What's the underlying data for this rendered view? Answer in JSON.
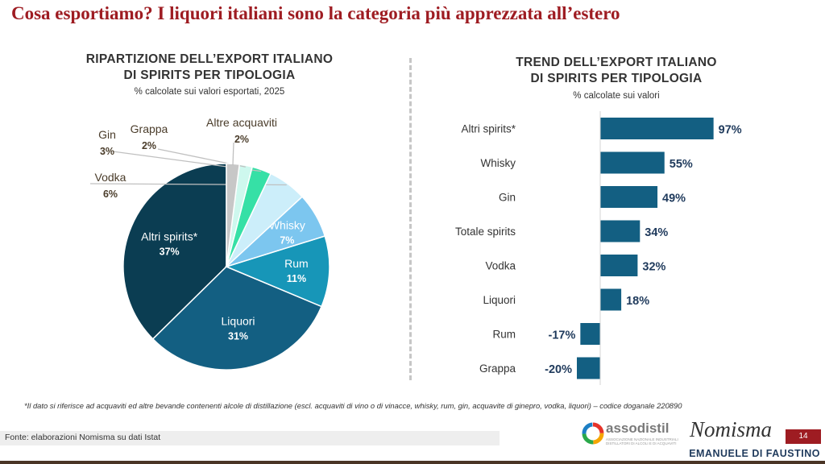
{
  "slide": {
    "title": "Cosa esportiamo? I liquori italiani sono la categoria più apprezzata all’estero",
    "footnote": "*Il dato si riferisce ad acquaviti ed altre bevande contenenti alcole di distillazione (escl. acquaviti di vino o di vinacce, whisky, rum, gin, acquavite di ginepro, vodka, liquori) – codice doganale 220890",
    "source": "Fonte: elaborazioni Nomisma su dati Istat",
    "page_number": "14",
    "author": "EMANUELE DI FAUSTINO",
    "logo_assodistil": "assodistil",
    "logo_assodistil_tagline": "ASSOCIAZIONE NAZIONALE INDUSTRIALI DISTILLATORI DI ALCOLI E DI ACQUAVITI",
    "logo_nomisma": "Nomisma"
  },
  "chart_data": [
    {
      "type": "pie",
      "title_line1": "RIPARTIZIONE DELL’EXPORT ITALIANO",
      "title_line2": "DI SPIRITS PER TIPOLOGIA",
      "subtitle": "% calcolate sui valori esportati, 2025",
      "slices": [
        {
          "label": "Altri spirits*",
          "value": 37,
          "value_label": "37%",
          "color": "#0b3d52",
          "label_position": "inside"
        },
        {
          "label": "Liquori",
          "value": 31,
          "value_label": "31%",
          "color": "#135f82",
          "label_position": "inside"
        },
        {
          "label": "Rum",
          "value": 11,
          "value_label": "11%",
          "color": "#1796b8",
          "label_position": "inside"
        },
        {
          "label": "Whisky",
          "value": 7,
          "value_label": "7%",
          "color": "#7cc6ef",
          "label_position": "inside"
        },
        {
          "label": "Vodka",
          "value": 6,
          "value_label": "6%",
          "color": "#cceefa",
          "label_position": "outside"
        },
        {
          "label": "Gin",
          "value": 3,
          "value_label": "3%",
          "color": "#36e0a6",
          "label_position": "outside"
        },
        {
          "label": "Grappa",
          "value": 2,
          "value_label": "2%",
          "color": "#cef8ee",
          "label_position": "outside"
        },
        {
          "label": "Altre acquaviti",
          "value": 2,
          "value_label": "2%",
          "color": "#c7c7c7",
          "label_position": "outside"
        }
      ],
      "colors": {
        "inside_label": "#ffffff",
        "outside_label": "#4a3c2a",
        "leader_line": "#c0c0c0"
      }
    },
    {
      "type": "bar",
      "orientation": "horizontal",
      "title_line1": "TREND DELL’EXPORT ITALIANO",
      "title_line2": "DI SPIRITS PER TIPOLOGIA",
      "subtitle": "% calcolate sui valori",
      "categories": [
        "Altri spirits*",
        "Whisky",
        "Gin",
        "Totale spirits",
        "Vodka",
        "Liquori",
        "Rum",
        "Grappa"
      ],
      "values": [
        97,
        55,
        49,
        34,
        32,
        18,
        -17,
        -20
      ],
      "value_labels": [
        "97%",
        "55%",
        "49%",
        "34%",
        "32%",
        "18%",
        "-17%",
        "-20%"
      ],
      "bar_color": "#135f82",
      "label_color": "#1f3a5c"
    }
  ]
}
